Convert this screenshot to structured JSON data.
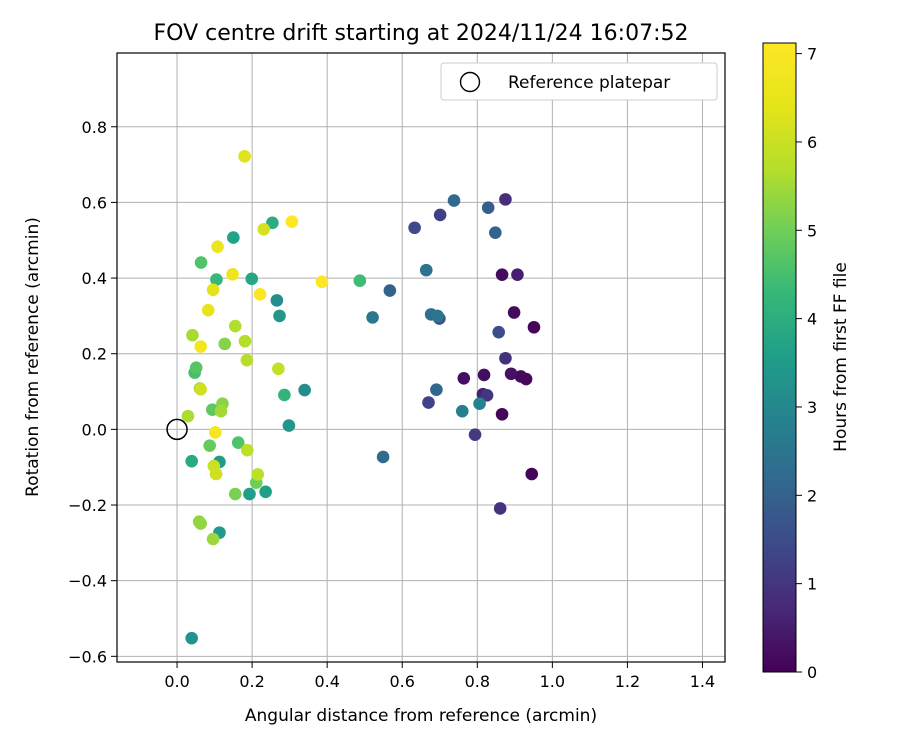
{
  "chart_data": {
    "type": "scatter",
    "title": "FOV centre drift starting at 2024/11/24 16:07:52",
    "xlabel": "Angular distance from reference (arcmin)",
    "ylabel": "Rotation from reference (arcmin)",
    "xlim": [
      -0.16,
      1.46
    ],
    "ylim": [
      -0.615,
      0.995
    ],
    "x_ticks": [
      0.0,
      0.2,
      0.4,
      0.6,
      0.8,
      1.0,
      1.2,
      1.4
    ],
    "x_tick_labels": [
      "0.0",
      "0.2",
      "0.4",
      "0.6",
      "0.8",
      "1.0",
      "1.2",
      "1.4"
    ],
    "y_ticks": [
      -0.6,
      -0.4,
      -0.2,
      0.0,
      0.2,
      0.4,
      0.6,
      0.8
    ],
    "y_tick_labels": [
      "−0.6",
      "−0.4",
      "−0.2",
      "0.0",
      "0.2",
      "0.4",
      "0.6",
      "0.8"
    ],
    "grid": true,
    "legend": {
      "placement": "top-right",
      "entries": [
        "Reference platepar"
      ]
    },
    "reference_point": {
      "x": 0.0,
      "y": 0.0,
      "label": "Reference platepar"
    },
    "colorbar": {
      "label": "Hours from first FF file",
      "colormap": "viridis",
      "min": 0,
      "max": 7.12,
      "ticks": [
        0,
        1,
        2,
        3,
        4,
        5,
        6,
        7
      ],
      "tick_labels": [
        "0",
        "1",
        "2",
        "3",
        "4",
        "5",
        "6",
        "7"
      ]
    },
    "points": [
      {
        "x": 0.866,
        "y": 0.04,
        "c": 0.05
      },
      {
        "x": 0.945,
        "y": -0.118,
        "c": 0.08
      },
      {
        "x": 0.93,
        "y": 0.133,
        "c": 0.12
      },
      {
        "x": 0.916,
        "y": 0.14,
        "c": 0.15
      },
      {
        "x": 0.951,
        "y": 0.27,
        "c": 0.1
      },
      {
        "x": 0.898,
        "y": 0.309,
        "c": 0.18
      },
      {
        "x": 0.866,
        "y": 0.409,
        "c": 0.2
      },
      {
        "x": 0.907,
        "y": 0.409,
        "c": 0.55
      },
      {
        "x": 0.89,
        "y": 0.147,
        "c": 0.3
      },
      {
        "x": 0.818,
        "y": 0.144,
        "c": 0.25
      },
      {
        "x": 0.764,
        "y": 0.135,
        "c": 0.28
      },
      {
        "x": 0.815,
        "y": 0.093,
        "c": 0.6
      },
      {
        "x": 0.826,
        "y": 0.09,
        "c": 1.0
      },
      {
        "x": 0.875,
        "y": 0.188,
        "c": 0.9
      },
      {
        "x": 0.875,
        "y": 0.608,
        "c": 0.85
      },
      {
        "x": 0.861,
        "y": -0.209,
        "c": 0.95
      },
      {
        "x": 0.794,
        "y": -0.014,
        "c": 1.1
      },
      {
        "x": 0.67,
        "y": 0.071,
        "c": 1.3
      },
      {
        "x": 0.701,
        "y": 0.567,
        "c": 1.25
      },
      {
        "x": 0.633,
        "y": 0.533,
        "c": 1.45
      },
      {
        "x": 0.857,
        "y": 0.257,
        "c": 1.55
      },
      {
        "x": 0.829,
        "y": 0.586,
        "c": 1.9
      },
      {
        "x": 0.738,
        "y": 0.605,
        "c": 2.2
      },
      {
        "x": 0.848,
        "y": 0.52,
        "c": 2.05
      },
      {
        "x": 0.699,
        "y": 0.293,
        "c": 1.7
      },
      {
        "x": 0.691,
        "y": 0.105,
        "c": 2.1
      },
      {
        "x": 0.567,
        "y": 0.367,
        "c": 2.0
      },
      {
        "x": 0.549,
        "y": -0.073,
        "c": 2.25
      },
      {
        "x": 0.677,
        "y": 0.304,
        "c": 2.35
      },
      {
        "x": 0.694,
        "y": 0.3,
        "c": 2.5
      },
      {
        "x": 0.664,
        "y": 0.421,
        "c": 2.4
      },
      {
        "x": 0.521,
        "y": 0.296,
        "c": 2.55
      },
      {
        "x": 0.76,
        "y": 0.048,
        "c": 2.7
      },
      {
        "x": 0.806,
        "y": 0.068,
        "c": 2.85
      },
      {
        "x": 0.34,
        "y": 0.104,
        "c": 3.1
      },
      {
        "x": 0.298,
        "y": 0.01,
        "c": 3.35
      },
      {
        "x": 0.266,
        "y": 0.341,
        "c": 3.15
      },
      {
        "x": 0.273,
        "y": 0.3,
        "c": 3.4
      },
      {
        "x": 0.236,
        "y": -0.165,
        "c": 3.6
      },
      {
        "x": 0.193,
        "y": -0.171,
        "c": 3.55
      },
      {
        "x": 0.113,
        "y": -0.086,
        "c": 3.5
      },
      {
        "x": 0.113,
        "y": -0.273,
        "c": 3.45
      },
      {
        "x": 0.039,
        "y": -0.552,
        "c": 3.3
      },
      {
        "x": 0.15,
        "y": 0.507,
        "c": 3.7
      },
      {
        "x": 0.199,
        "y": 0.398,
        "c": 3.8
      },
      {
        "x": 0.254,
        "y": 0.546,
        "c": 4.0
      },
      {
        "x": 0.039,
        "y": -0.084,
        "c": 3.9
      },
      {
        "x": 0.286,
        "y": 0.091,
        "c": 4.2
      },
      {
        "x": 0.487,
        "y": 0.393,
        "c": 4.4
      },
      {
        "x": 0.105,
        "y": 0.396,
        "c": 4.3
      },
      {
        "x": 0.064,
        "y": 0.441,
        "c": 4.6
      },
      {
        "x": 0.047,
        "y": 0.15,
        "c": 4.5
      },
      {
        "x": 0.051,
        "y": 0.163,
        "c": 4.7
      },
      {
        "x": 0.163,
        "y": -0.035,
        "c": 4.6
      },
      {
        "x": 0.094,
        "y": 0.052,
        "c": 4.8
      },
      {
        "x": 0.087,
        "y": -0.043,
        "c": 4.9
      },
      {
        "x": 0.155,
        "y": -0.171,
        "c": 5.1
      },
      {
        "x": 0.211,
        "y": -0.141,
        "c": 5.0
      },
      {
        "x": 0.127,
        "y": 0.226,
        "c": 5.2
      },
      {
        "x": 0.059,
        "y": -0.244,
        "c": 5.3
      },
      {
        "x": 0.061,
        "y": 0.108,
        "c": 5.4
      },
      {
        "x": 0.121,
        "y": 0.068,
        "c": 5.25
      },
      {
        "x": 0.117,
        "y": 0.048,
        "c": 5.5
      },
      {
        "x": 0.063,
        "y": -0.249,
        "c": 5.35
      },
      {
        "x": 0.096,
        "y": -0.29,
        "c": 5.45
      },
      {
        "x": 0.029,
        "y": 0.035,
        "c": 5.6
      },
      {
        "x": 0.041,
        "y": 0.249,
        "c": 5.55
      },
      {
        "x": 0.155,
        "y": 0.273,
        "c": 5.65
      },
      {
        "x": 0.181,
        "y": 0.233,
        "c": 5.7
      },
      {
        "x": 0.186,
        "y": 0.183,
        "c": 5.75
      },
      {
        "x": 0.215,
        "y": -0.119,
        "c": 5.8
      },
      {
        "x": 0.187,
        "y": -0.055,
        "c": 5.85
      },
      {
        "x": 0.27,
        "y": 0.16,
        "c": 5.9
      },
      {
        "x": 0.098,
        "y": -0.097,
        "c": 6.0
      },
      {
        "x": 0.104,
        "y": -0.118,
        "c": 6.05
      },
      {
        "x": 0.063,
        "y": 0.106,
        "c": 6.1
      },
      {
        "x": 0.231,
        "y": 0.529,
        "c": 6.15
      },
      {
        "x": 0.096,
        "y": 0.369,
        "c": 6.4
      },
      {
        "x": 0.083,
        "y": 0.315,
        "c": 6.5
      },
      {
        "x": 0.18,
        "y": 0.722,
        "c": 6.3
      },
      {
        "x": 0.108,
        "y": 0.483,
        "c": 6.6
      },
      {
        "x": 0.148,
        "y": 0.41,
        "c": 6.7
      },
      {
        "x": 0.063,
        "y": 0.219,
        "c": 6.8
      },
      {
        "x": 0.102,
        "y": -0.008,
        "c": 6.85
      },
      {
        "x": 0.221,
        "y": 0.357,
        "c": 7.0
      },
      {
        "x": 0.386,
        "y": 0.39,
        "c": 7.05
      },
      {
        "x": 0.306,
        "y": 0.549,
        "c": 7.1
      }
    ]
  }
}
